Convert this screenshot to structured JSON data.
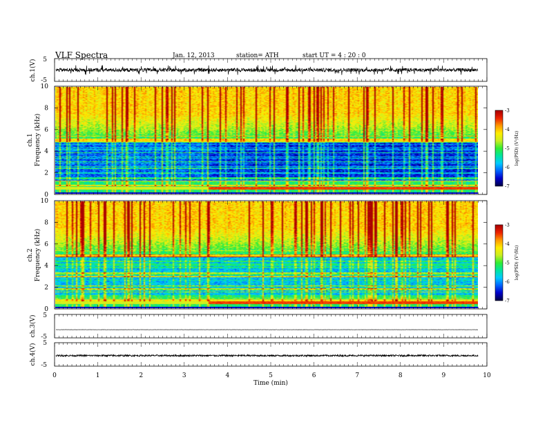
{
  "header": {
    "title": "VLF  Spectra",
    "date": "Jan. 12, 2013",
    "station": "station= ATH",
    "start": "start  UT  =   4  : 20 : 0"
  },
  "chart_data": [
    {
      "type": "line",
      "panel": "ch1-waveform",
      "ylabel": "ch.1(V)",
      "ylim": [
        -5,
        5
      ],
      "yticks": [
        "5",
        "-5"
      ],
      "xlim": [
        0,
        10
      ],
      "description_values": {
        "baseline": 0,
        "noise_amplitude": 0.8,
        "spike_amplitude": 2.2
      }
    },
    {
      "type": "heatmap",
      "panel": "ch1-spectrogram",
      "ylabel_line1": "ch.1",
      "ylabel_line2": "Frequency (kHz)",
      "ylim": [
        0,
        10
      ],
      "yticks": [
        "0",
        "2",
        "4",
        "6",
        "8",
        "10"
      ],
      "xlim": [
        0,
        9.8
      ],
      "colorbar": {
        "label": "log(PSD) (V²/Hz)",
        "range": [
          -7,
          -3
        ],
        "ticks": [
          "-3",
          "-4",
          "-5",
          "-6",
          "-7"
        ]
      }
    },
    {
      "type": "heatmap",
      "panel": "ch2-spectrogram",
      "ylabel_line1": "ch.2",
      "ylabel_line2": "Frequency (kHz)",
      "ylim": [
        0,
        10
      ],
      "yticks": [
        "0",
        "2",
        "4",
        "6",
        "8",
        "10"
      ],
      "xlim": [
        0,
        9.8
      ],
      "colorbar": {
        "label": "log(PSD) (V²/Hz)",
        "range": [
          -7,
          -3
        ],
        "ticks": [
          "-3",
          "-4",
          "-5",
          "-6",
          "-7"
        ]
      }
    },
    {
      "type": "line",
      "panel": "ch3-waveform",
      "ylabel": "ch.3(V)",
      "ylim": [
        -5,
        5
      ],
      "yticks": [
        "5",
        "-5"
      ],
      "description_values": {
        "baseline": -1.5,
        "noise_amplitude": 0.05
      }
    },
    {
      "type": "line",
      "panel": "ch4-waveform",
      "ylabel": "ch.4(V)",
      "ylim": [
        -5,
        5
      ],
      "yticks": [
        "5",
        "-5"
      ],
      "xlabel": "Time  (min)",
      "xlim": [
        0,
        10
      ],
      "xticks": [
        "0",
        "1",
        "2",
        "3",
        "4",
        "5",
        "6",
        "7",
        "8",
        "9",
        "10"
      ],
      "description_values": {
        "baseline": -0.5,
        "noise_amplitude": 0.35
      }
    }
  ],
  "colors": {
    "scale": [
      "#00004a",
      "#0000cc",
      "#0066ff",
      "#00ccff",
      "#00e6a0",
      "#33ee33",
      "#ccee22",
      "#ffee00",
      "#ff9900",
      "#ee2200",
      "#aa0000"
    ]
  }
}
